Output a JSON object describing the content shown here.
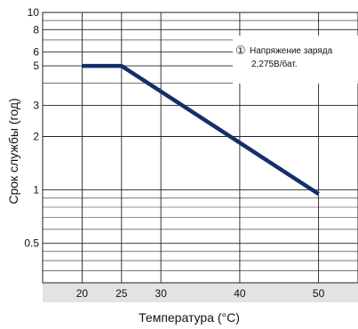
{
  "chart_data": {
    "type": "line",
    "xlabel": "Температура (°C)",
    "ylabel": "Срок службы (год)",
    "xlim": [
      15,
      55
    ],
    "ylim": [
      0.3,
      10
    ],
    "y_scale": "log",
    "x_ticks": [
      20,
      25,
      30,
      40,
      50
    ],
    "x_tick_labels": [
      "20",
      "25",
      "30",
      "40",
      "50"
    ],
    "x_grid": [
      20,
      25,
      30,
      40,
      50
    ],
    "y_ticks": [
      0.5,
      1,
      2,
      3,
      5,
      6,
      8,
      10
    ],
    "y_tick_labels": [
      "0.5",
      "1",
      "2",
      "3",
      "5",
      "6",
      "8",
      "10"
    ],
    "y_minor_grid": [
      0.35,
      0.4,
      0.45,
      0.6,
      0.7,
      0.8,
      0.9,
      4,
      7,
      9
    ],
    "grid": true,
    "series": [
      {
        "x": [
          20,
          25,
          50
        ],
        "y": [
          5,
          5,
          0.95
        ]
      }
    ],
    "annotation": {
      "marker": "①",
      "lines": [
        "Напряжение заряда",
        "2,275В/бат."
      ],
      "position": "top-right"
    },
    "colors": {
      "line": "#12306b",
      "grid": "#222222",
      "bottom_band": "#e3e3e3"
    }
  }
}
